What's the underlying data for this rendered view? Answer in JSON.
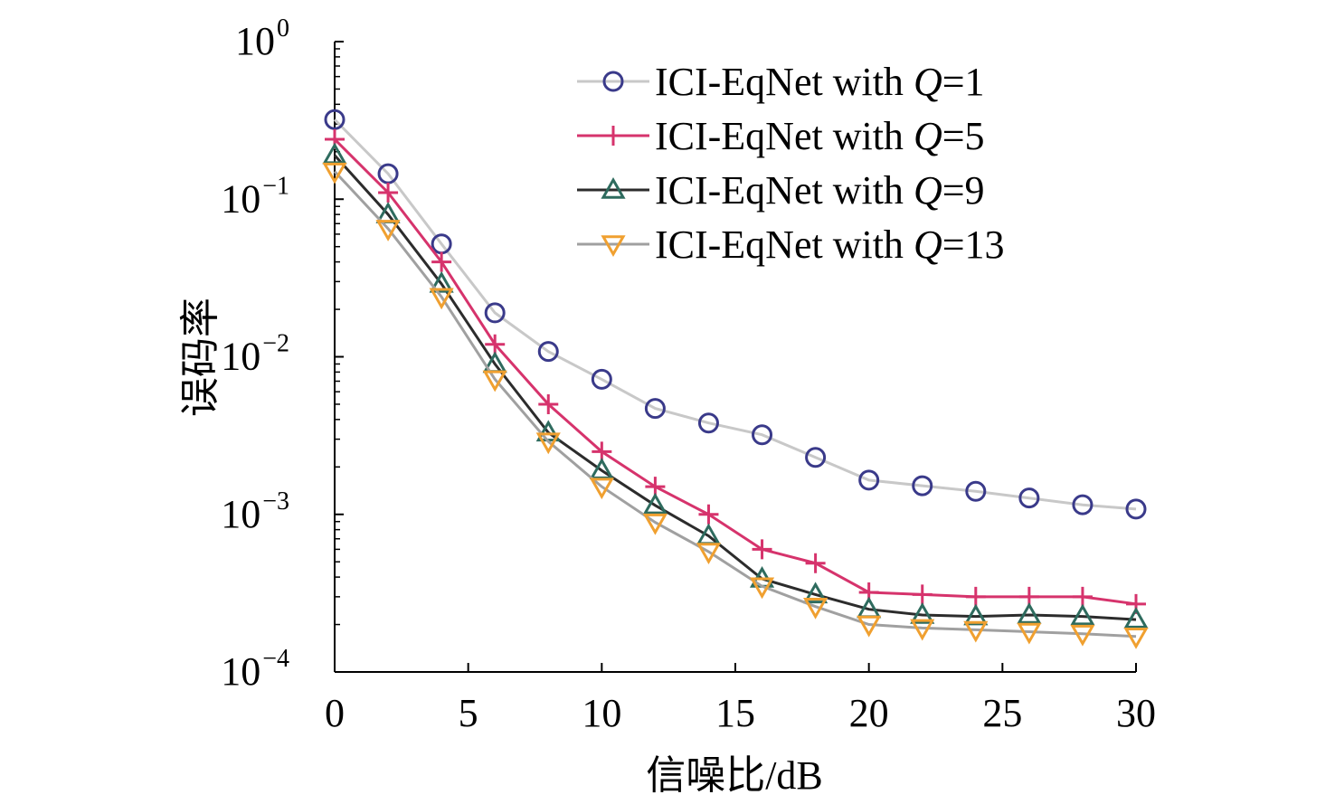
{
  "chart_data": {
    "type": "line",
    "xlabel": "信噪比/dB",
    "ylabel": "误码率",
    "xlim": [
      0,
      30
    ],
    "ylim": [
      0.0001,
      1
    ],
    "yscale": "log",
    "x_ticks": [
      "0",
      "5",
      "10",
      "15",
      "20",
      "25",
      "30"
    ],
    "y_ticks": [
      {
        "base": "10",
        "exp": "0"
      },
      {
        "base": "10",
        "exp": "−1"
      },
      {
        "base": "10",
        "exp": "−2"
      },
      {
        "base": "10",
        "exp": "−3"
      },
      {
        "base": "10",
        "exp": "−4"
      }
    ],
    "legend_position": "top-right",
    "x": [
      0,
      2,
      4,
      6,
      8,
      10,
      12,
      14,
      16,
      18,
      20,
      22,
      24,
      26,
      28,
      30
    ],
    "series": [
      {
        "legend_prefix": "ICI-EqNet with ",
        "legend_var": "Q",
        "legend_suffix": "=1",
        "marker": "circle",
        "line_color": "#c8c8c8",
        "marker_color": "#3a3a8a",
        "values": [
          0.32,
          0.145,
          0.052,
          0.019,
          0.0108,
          0.0072,
          0.0047,
          0.0038,
          0.0032,
          0.0023,
          0.00165,
          0.00152,
          0.0014,
          0.00127,
          0.00115,
          0.00108
        ]
      },
      {
        "legend_prefix": "ICI-EqNet with ",
        "legend_var": "Q",
        "legend_suffix": "=5",
        "marker": "plus",
        "line_color": "#d6336c",
        "marker_color": "#d6336c",
        "values": [
          0.24,
          0.11,
          0.04,
          0.012,
          0.005,
          0.0025,
          0.0015,
          0.001,
          0.0006,
          0.00049,
          0.00032,
          0.00031,
          0.0003,
          0.0003,
          0.0003,
          0.00027
        ]
      },
      {
        "legend_prefix": "ICI-EqNet with ",
        "legend_var": "Q",
        "legend_suffix": "=9",
        "marker": "triangle-up",
        "line_color": "#2c2c2c",
        "marker_color": "#2e6b5e",
        "values": [
          0.19,
          0.08,
          0.029,
          0.009,
          0.0033,
          0.0019,
          0.00114,
          0.00073,
          0.00039,
          0.00031,
          0.00025,
          0.00023,
          0.000225,
          0.00023,
          0.000225,
          0.000215
        ]
      },
      {
        "legend_prefix": "ICI-EqNet with ",
        "legend_var": "Q",
        "legend_suffix": "=13",
        "marker": "triangle-down",
        "line_color": "#a0a0a0",
        "marker_color": "#f0a030",
        "values": [
          0.15,
          0.065,
          0.024,
          0.0072,
          0.0029,
          0.0015,
          0.00089,
          0.00058,
          0.00035,
          0.00026,
          0.0002,
          0.00019,
          0.000185,
          0.00018,
          0.000175,
          0.000168
        ]
      }
    ]
  }
}
